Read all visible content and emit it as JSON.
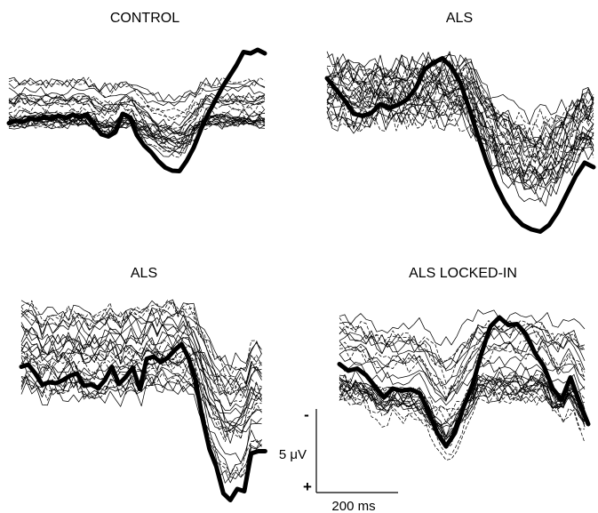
{
  "chart_data": {
    "type": "line",
    "panels": [
      {
        "title": "CONTROL",
        "series": [
          {
            "style": "thick",
            "x": [
              0,
              8,
              16,
              24,
              32,
              40,
              48,
              56,
              64,
              72,
              80,
              88,
              96,
              104,
              112,
              120,
              128,
              136,
              144,
              152,
              160,
              168,
              176,
              184,
              192,
              200,
              208,
              216,
              224,
              232,
              240,
              248,
              256,
              264,
              272,
              280,
              288
            ],
            "y": [
              -0.5,
              0,
              -0.2,
              0.5,
              0.3,
              0.9,
              0.4,
              1.2,
              0.7,
              1.4,
              0.8,
              1.5,
              -0.9,
              -3,
              -3.5,
              -2.5,
              1.6,
              0.8,
              -3.2,
              -5.5,
              -7,
              -9,
              -10.5,
              -11.2,
              -11.3,
              -9,
              -6,
              -2,
              1.5,
              4.5,
              7.5,
              10,
              12.5,
              15.5,
              15.2,
              16,
              15.2
            ]
          }
        ]
      },
      {
        "title": "ALS",
        "series": [
          {
            "style": "thick",
            "x": [
              0,
              10,
              20,
              30,
              40,
              50,
              60,
              70,
              80,
              90,
              100,
              110,
              120,
              130,
              140,
              150,
              160,
              170,
              180,
              190,
              200,
              210,
              220,
              230,
              240,
              250,
              260,
              270,
              280,
              290,
              300
            ],
            "y": [
              6,
              3.5,
              1,
              -2,
              -2.5,
              -1.8,
              0.2,
              -0.7,
              0,
              1.2,
              3.8,
              8,
              9.5,
              10.5,
              8.5,
              5,
              -0.8,
              -7,
              -13,
              -18,
              -22,
              -25,
              -27,
              -28,
              -28.5,
              -27,
              -24,
              -20,
              -16,
              -13,
              -14
            ]
          }
        ]
      },
      {
        "title": "ALS",
        "series": [
          {
            "style": "thick",
            "x": [
              0,
              8,
              16,
              24,
              32,
              40,
              48,
              56,
              64,
              72,
              80,
              88,
              96,
              104,
              112,
              120,
              128,
              136,
              144,
              152,
              160,
              168,
              176,
              184,
              192,
              200,
              208,
              216,
              224,
              232,
              240,
              248,
              256,
              264,
              272,
              280
            ],
            "y": [
              -0.5,
              0,
              -2,
              -4.5,
              -4,
              -4.2,
              -3.5,
              -2.5,
              -2,
              -4.8,
              -4.5,
              -5.3,
              -3.5,
              -0.5,
              -4.4,
              -2.8,
              -0.7,
              -5.5,
              1.3,
              1.8,
              0.5,
              1.5,
              3.2,
              4.6,
              1.5,
              -3.5,
              -12,
              -19,
              -23,
              -29,
              -30.5,
              -28,
              -28.5,
              -20,
              -19.5,
              -19.5
            ]
          }
        ]
      },
      {
        "title": "ALS LOCKED-IN",
        "series": [
          {
            "style": "thick",
            "x": [
              0,
              10,
              20,
              30,
              40,
              50,
              60,
              70,
              80,
              90,
              100,
              110,
              120,
              130,
              140,
              150,
              160,
              170,
              180,
              190,
              200,
              210,
              220,
              230,
              240,
              250,
              260,
              270,
              280
            ],
            "y": [
              0.5,
              -1,
              -0.5,
              -2,
              -4.5,
              -7,
              -5,
              -5.5,
              -5.2,
              -6,
              -10,
              -15,
              -18,
              -15,
              -9,
              -4,
              3,
              9,
              11,
              9.3,
              9.5,
              7.2,
              3,
              0,
              -5,
              -7.5,
              -2.5,
              -8,
              -13
            ]
          }
        ]
      }
    ],
    "scale_bar": {
      "amplitude": "5 μV",
      "time": "200 ms",
      "negative_mark": "-",
      "positive_mark": "+"
    }
  }
}
